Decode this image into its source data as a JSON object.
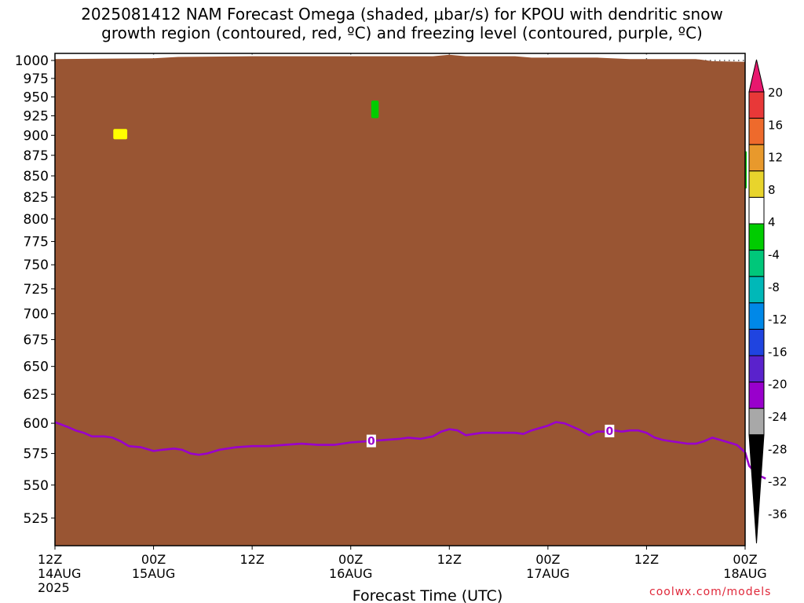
{
  "title_line1": "2025081412 NAM Forecast Omega (shaded, μbar/s) for KPOU with dendritic snow",
  "title_line2": "growth region (contoured, red, ºC) and freezing level (contoured, purple, ºC)",
  "watermark": "coolwx.com/models",
  "chart_data": {
    "type": "time-pressure cross section",
    "title": "2025081412 NAM Forecast Omega (shaded, μbar/s) for KPOU with dendritic snow growth region (contoured, red, ºC) and freezing level (contoured, purple, ºC)",
    "xlabel": "Forecast Time (UTC)",
    "x_units": "forecast hour",
    "xlim": [
      0,
      84
    ],
    "x_ticks": [
      {
        "hour": 0,
        "label": "12Z",
        "date": "14AUG",
        "year": "2025"
      },
      {
        "hour": 12,
        "label": "00Z",
        "date": "15AUG"
      },
      {
        "hour": 24,
        "label": "12Z"
      },
      {
        "hour": 36,
        "label": "00Z",
        "date": "16AUG"
      },
      {
        "hour": 48,
        "label": "12Z"
      },
      {
        "hour": 60,
        "label": "00Z",
        "date": "17AUG"
      },
      {
        "hour": 72,
        "label": "12Z"
      },
      {
        "hour": 84,
        "label": "00Z",
        "date": "18AUG"
      }
    ],
    "ylabel": "",
    "y_units": "hPa",
    "ylim": [
      1010,
      505
    ],
    "y_scale": "log",
    "y_ticks": [
      525,
      550,
      575,
      600,
      625,
      650,
      675,
      700,
      725,
      750,
      775,
      800,
      825,
      850,
      875,
      900,
      925,
      950,
      975,
      1000
    ],
    "grid": true,
    "freezing_level": {
      "color": "#9900cc",
      "label": "0",
      "label_hours": [
        38.5,
        67.5
      ],
      "points": [
        [
          0,
          601
        ],
        [
          1.5,
          597
        ],
        [
          2.5,
          594
        ],
        [
          3.5,
          592
        ],
        [
          4.5,
          589
        ],
        [
          6,
          589
        ],
        [
          7,
          588
        ],
        [
          8,
          585
        ],
        [
          9,
          581
        ],
        [
          10.5,
          580
        ],
        [
          12,
          577
        ],
        [
          13,
          578
        ],
        [
          14.5,
          579
        ],
        [
          15.5,
          578
        ],
        [
          16.5,
          575
        ],
        [
          17.5,
          574
        ],
        [
          18.5,
          575
        ],
        [
          20,
          578
        ],
        [
          22,
          580
        ],
        [
          24,
          581
        ],
        [
          26,
          581
        ],
        [
          28,
          582
        ],
        [
          30,
          583
        ],
        [
          32,
          582
        ],
        [
          34,
          582
        ],
        [
          36,
          584
        ],
        [
          38,
          585
        ],
        [
          40,
          586
        ],
        [
          42,
          587
        ],
        [
          43,
          588
        ],
        [
          44.5,
          587
        ],
        [
          46,
          589
        ],
        [
          47,
          593
        ],
        [
          48,
          595
        ],
        [
          49,
          594
        ],
        [
          50,
          590
        ],
        [
          51,
          591
        ],
        [
          52,
          592
        ],
        [
          54,
          592
        ],
        [
          56,
          592
        ],
        [
          57,
          591
        ],
        [
          58,
          594
        ],
        [
          60,
          598
        ],
        [
          61,
          601
        ],
        [
          62,
          600
        ],
        [
          63,
          597
        ],
        [
          64,
          594
        ],
        [
          65,
          590
        ],
        [
          66,
          593
        ],
        [
          67,
          593
        ],
        [
          68,
          594
        ],
        [
          69,
          593
        ],
        [
          70,
          594
        ],
        [
          71,
          594
        ],
        [
          72,
          592
        ],
        [
          73,
          588
        ],
        [
          74,
          586
        ],
        [
          75,
          585
        ],
        [
          76,
          584
        ],
        [
          77,
          583
        ],
        [
          78,
          583
        ],
        [
          79,
          585
        ],
        [
          80,
          588
        ],
        [
          81,
          586
        ],
        [
          82,
          584
        ],
        [
          83,
          582
        ],
        [
          84,
          576
        ]
      ],
      "tail": [
        [
          84,
          576
        ],
        [
          84.5,
          565
        ],
        [
          85.5,
          558
        ],
        [
          86.5,
          555
        ]
      ]
    },
    "omega_shading": [
      {
        "color": "#ffff00",
        "hours": [
          7.1,
          8.8
        ],
        "pressure": [
          895,
          908
        ],
        "bin": "4 to 8"
      },
      {
        "color": "#00cc00",
        "hours": [
          38.5,
          39.4
        ],
        "pressure": [
          922,
          945
        ],
        "bin": "-8 to -4"
      },
      {
        "color": "#00cc00",
        "hours": [
          84,
          84.2
        ],
        "pressure": [
          835,
          880
        ],
        "bin": "-8 to -4"
      }
    ],
    "terrain": {
      "color": "#995533",
      "surface_pressure": [
        [
          0,
          1002
        ],
        [
          12,
          1003
        ],
        [
          15,
          1005
        ],
        [
          24,
          1006
        ],
        [
          36,
          1006
        ],
        [
          46,
          1006
        ],
        [
          48,
          1008
        ],
        [
          50,
          1006
        ],
        [
          56,
          1006
        ],
        [
          58,
          1004
        ],
        [
          66,
          1004
        ],
        [
          70,
          1002
        ],
        [
          78,
          1002
        ],
        [
          80,
          999
        ],
        [
          84,
          998
        ]
      ]
    },
    "colorbar": {
      "labels": [
        "20",
        "16",
        "12",
        "8",
        "4",
        "-4",
        "-8",
        "-12",
        "-16",
        "-20",
        "-24",
        "-28",
        "-32",
        "-36"
      ],
      "segments": [
        {
          "name": "above 20",
          "color": "#e8176e"
        },
        {
          "name": "16 to 20",
          "color": "#e83838"
        },
        {
          "name": "12 to 16",
          "color": "#ee6a2c"
        },
        {
          "name": "8 to 12",
          "color": "#e8992c"
        },
        {
          "name": "4 to 8",
          "color": "#e8d42c"
        },
        {
          "name": "-4 to 4",
          "color": "#ffffff"
        },
        {
          "name": "-8 to -4",
          "color": "#00cc00"
        },
        {
          "name": "-12 to -8",
          "color": "#00c77a"
        },
        {
          "name": "-16 to -12",
          "color": "#00b8b8"
        },
        {
          "name": "-20 to -16",
          "color": "#0088e8"
        },
        {
          "name": "-24 to -20",
          "color": "#1f44e0"
        },
        {
          "name": "-28 to -24",
          "color": "#5a22cc"
        },
        {
          "name": "-32 to -28",
          "color": "#9900cc"
        },
        {
          "name": "-36 to -32",
          "color": "#a8a8a8"
        },
        {
          "name": "below -36",
          "color": "#000000"
        }
      ]
    }
  }
}
